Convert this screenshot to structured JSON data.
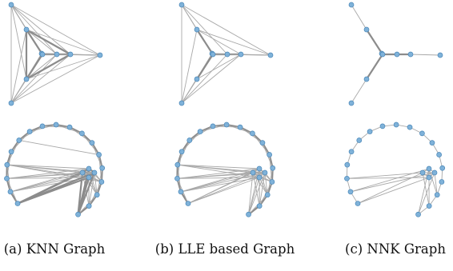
{
  "figure": {
    "captions": {
      "a": "(a) KNN Graph",
      "b": "(b) LLE based Graph",
      "c": "(c) NNK Graph"
    },
    "colors": {
      "node_fill": "#7fb2d9",
      "node_stroke": "#4a87b8",
      "edge": "#a8a8a8",
      "edge_strong": "#8c8c8c",
      "text": "#111111"
    },
    "panels": [
      {
        "id": "knn-star",
        "graph": "star",
        "method": "knn"
      },
      {
        "id": "lle-star",
        "graph": "star",
        "method": "lle"
      },
      {
        "id": "nnk-star",
        "graph": "star",
        "method": "nnk"
      },
      {
        "id": "knn-ring",
        "graph": "ring",
        "method": "knn"
      },
      {
        "id": "lle-ring",
        "graph": "ring",
        "method": "lle"
      },
      {
        "id": "nnk-ring",
        "graph": "ring",
        "method": "nnk"
      }
    ]
  }
}
